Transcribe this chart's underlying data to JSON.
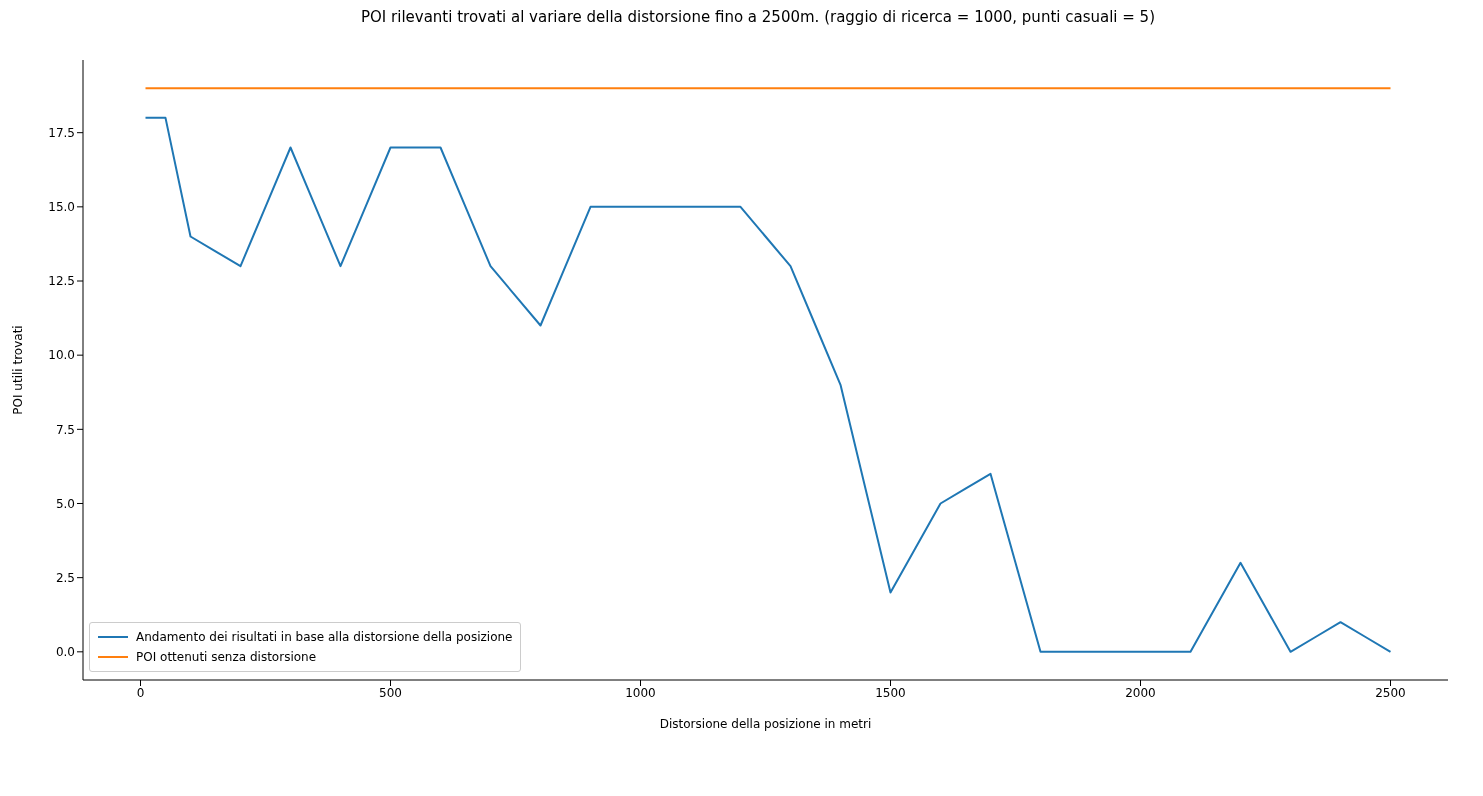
{
  "chart_data": {
    "type": "line",
    "title": "POI rilevanti trovati al variare della distorsione fino a 2500m. (raggio di ricerca = 1000, punti casuali = 5)",
    "xlabel": "Distorsione della posizione in metri",
    "ylabel": "POI utili trovati",
    "xlim": [
      -115,
      2615
    ],
    "xticks": [
      0,
      500,
      1000,
      1500,
      2000,
      2500
    ],
    "ylim": [
      -0.95,
      19.95
    ],
    "yticks": [
      {
        "value": 0,
        "label": "0.0"
      },
      2.5,
      {
        "value": 5,
        "label": "5.0"
      },
      7.5,
      {
        "value": 10,
        "label": "10.0"
      },
      12.5,
      {
        "value": 15,
        "label": "15.0"
      },
      17.5
    ],
    "grid": false,
    "legend": "bottom left",
    "line_style": "solid",
    "series": [
      {
        "name": "Andamento dei risultati in base alla distorsione della posizione",
        "color": "#1f77b4",
        "x": [
          10,
          50,
          100,
          150,
          200,
          250,
          300,
          350,
          400,
          450,
          500,
          550,
          600,
          650,
          700,
          750,
          800,
          850,
          900,
          950,
          1000,
          1050,
          1100,
          1150,
          1200,
          1250,
          1300,
          1350,
          1400,
          1450,
          1500,
          1550,
          1600,
          1650,
          1700,
          1750,
          1800,
          1850,
          1900,
          1950,
          2000,
          2050,
          2100,
          2150,
          2200,
          2250,
          2300,
          2350,
          2400,
          2450,
          2500
        ],
        "values": [
          18,
          18,
          14,
          13.5,
          13,
          15,
          17,
          15,
          13,
          15,
          17,
          17,
          17,
          15,
          13,
          12,
          11,
          13,
          15,
          15,
          15,
          15,
          15,
          15,
          15,
          14,
          13,
          11,
          9,
          5.5,
          2,
          3.5,
          5,
          5.5,
          6,
          3,
          0,
          0,
          0,
          0,
          0,
          0,
          0,
          1.5,
          3,
          1.5,
          0,
          0.5,
          1,
          0.5,
          0
        ]
      },
      {
        "name": "POI ottenuti senza distorsione",
        "color": "#ff7f0e",
        "x": [
          10,
          2500
        ],
        "values": [
          19,
          19
        ]
      }
    ]
  }
}
